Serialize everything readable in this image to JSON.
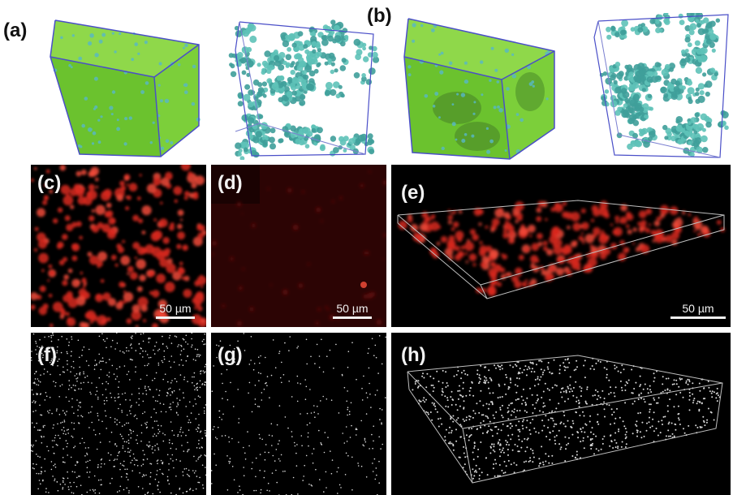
{
  "panels": {
    "a": {
      "label": "(a)"
    },
    "b": {
      "label": "(b)"
    },
    "c": {
      "label": "(c)",
      "scale_bar": "50 µm"
    },
    "d": {
      "label": "(d)",
      "scale_bar": "50 µm"
    },
    "e": {
      "label": "(e)",
      "scale_bar": "50 µm"
    },
    "f": {
      "label": "(f)"
    },
    "g": {
      "label": "(g)"
    },
    "h": {
      "label": "(h)"
    }
  },
  "colors": {
    "green_cube": "#7ccf3a",
    "cyan_particles": "#4fb8b0",
    "cube_edges": "#4a4fc8",
    "red_fluorescence": "#e0302a",
    "dim_red": "#3a0606",
    "white_points": "#d8d8d8"
  }
}
